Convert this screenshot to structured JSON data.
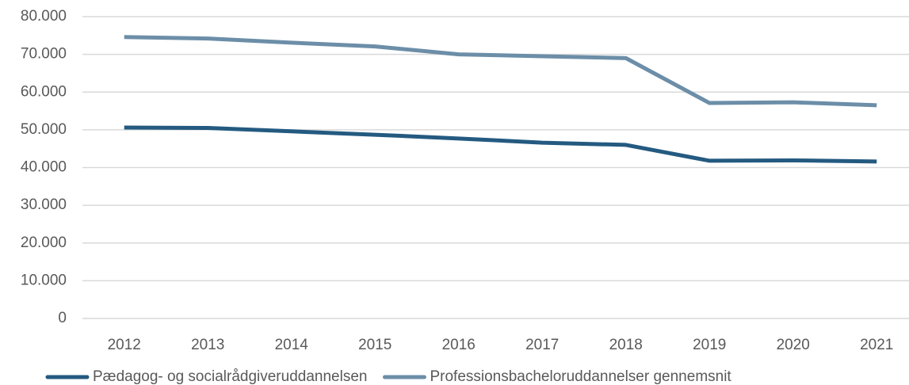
{
  "chart_data": {
    "type": "line",
    "categories": [
      "2012",
      "2013",
      "2014",
      "2015",
      "2016",
      "2017",
      "2018",
      "2019",
      "2020",
      "2021"
    ],
    "series": [
      {
        "name": "Pædagog- og socialrådgiveruddannelsen",
        "color": "#245a80",
        "values": [
          50600,
          50500,
          49600,
          48700,
          47700,
          46600,
          46000,
          41800,
          41900,
          41600
        ]
      },
      {
        "name": "Professionsbacheloruddannelser gennemsnit",
        "color": "#6c8ea8",
        "values": [
          74600,
          74200,
          73100,
          72100,
          70000,
          69500,
          69000,
          57100,
          57300,
          56500
        ]
      }
    ],
    "ylim": [
      0,
      80000
    ],
    "yticks": [
      {
        "value": 0,
        "label": "0"
      },
      {
        "value": 10000,
        "label": "10.000"
      },
      {
        "value": 20000,
        "label": "20.000"
      },
      {
        "value": 30000,
        "label": "30.000"
      },
      {
        "value": 40000,
        "label": "40.000"
      },
      {
        "value": 50000,
        "label": "50.000"
      },
      {
        "value": 60000,
        "label": "60.000"
      },
      {
        "value": 70000,
        "label": "70.000"
      },
      {
        "value": 80000,
        "label": "80.000"
      }
    ],
    "grid": true,
    "legend": "bottom"
  }
}
